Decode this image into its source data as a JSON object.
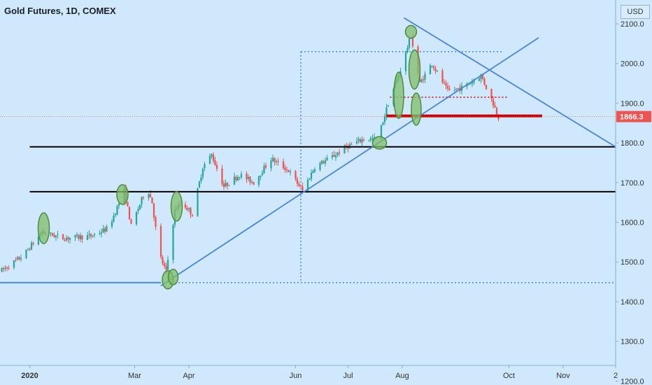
{
  "header": {
    "title": "Gold Futures, 1D, COMEX",
    "currency": "USD"
  },
  "colors": {
    "background": "#cfe8fc",
    "up_candle": "#26a69a",
    "down_candle": "#ef5350",
    "trendline": "#4a86d4",
    "horizontal_line": "#000000",
    "support_line": "#cc0000",
    "highlight_fill": "#7fbf6a",
    "highlight_stroke": "#4f8a3d",
    "price_label_bg": "#ef5350",
    "axis_text": "#333333"
  },
  "chart_data": {
    "type": "candlestick",
    "title": "Gold Futures, 1D, COMEX",
    "y_range": [
      1190,
      2160
    ],
    "y_ticks": [
      "2100.0",
      "2000.0",
      "1900.0",
      "1800.0",
      "1700.0",
      "1600.0",
      "1500.0",
      "1400.0",
      "1300.0",
      "1200.0"
    ],
    "x_range": [
      "2019-12-15",
      "2020-12-01"
    ],
    "x_ticks": [
      {
        "date": "2020-01-01",
        "label": "2020"
      },
      {
        "date": "2020-03-01",
        "label": "Mar"
      },
      {
        "date": "2020-04-01",
        "label": "Apr"
      },
      {
        "date": "2020-06-01",
        "label": "Jun"
      },
      {
        "date": "2020-07-01",
        "label": "Jul"
      },
      {
        "date": "2020-08-01",
        "label": "Aug"
      },
      {
        "date": "2020-10-01",
        "label": "Oct"
      },
      {
        "date": "2020-11-01",
        "label": "Nov"
      },
      {
        "date": "2020-12-01",
        "label": "2"
      }
    ],
    "current_price": "1866.3",
    "price_path": [
      [
        "2019-12-16",
        1478
      ],
      [
        "2019-12-28",
        1515
      ],
      [
        "2020-01-08",
        1575
      ],
      [
        "2020-01-20",
        1560
      ],
      [
        "2020-02-05",
        1565
      ],
      [
        "2020-02-15",
        1585
      ],
      [
        "2020-02-24",
        1680
      ],
      [
        "2020-02-28",
        1590
      ],
      [
        "2020-03-08",
        1690
      ],
      [
        "2020-03-11",
        1650
      ],
      [
        "2020-03-15",
        1520
      ],
      [
        "2020-03-19",
        1475
      ],
      [
        "2020-03-24",
        1630
      ],
      [
        "2020-03-28",
        1650
      ],
      [
        "2020-04-03",
        1620
      ],
      [
        "2020-04-09",
        1740
      ],
      [
        "2020-04-14",
        1770
      ],
      [
        "2020-04-21",
        1690
      ],
      [
        "2020-04-30",
        1720
      ],
      [
        "2020-05-08",
        1700
      ],
      [
        "2020-05-18",
        1760
      ],
      [
        "2020-05-28",
        1730
      ],
      [
        "2020-06-05",
        1680
      ],
      [
        "2020-06-12",
        1740
      ],
      [
        "2020-06-22",
        1765
      ],
      [
        "2020-06-30",
        1790
      ],
      [
        "2020-07-10",
        1810
      ],
      [
        "2020-07-18",
        1810
      ],
      [
        "2020-07-24",
        1900
      ],
      [
        "2020-07-31",
        1985
      ],
      [
        "2020-08-06",
        2070
      ],
      [
        "2020-08-11",
        1950
      ],
      [
        "2020-08-18",
        2000
      ],
      [
        "2020-08-27",
        1930
      ],
      [
        "2020-09-05",
        1940
      ],
      [
        "2020-09-15",
        1970
      ],
      [
        "2020-09-21",
        1910
      ],
      [
        "2020-09-25",
        1866
      ]
    ],
    "horizontal_lines": [
      {
        "y": 1790,
        "x_start": "2020-01-01",
        "x_end": "2020-12-01",
        "style": "solid",
        "color": "#000000"
      },
      {
        "y": 1677,
        "x_start": "2020-01-01",
        "x_end": "2020-12-01",
        "style": "solid",
        "color": "#000000"
      },
      {
        "y": 1868,
        "x_start": "2020-07-23",
        "x_end": "2020-10-20",
        "style": "solid",
        "color": "#cc0000"
      },
      {
        "y": 1915,
        "x_start": "2020-07-25",
        "x_end": "2020-09-30",
        "style": "dotted",
        "color": "#cc0000"
      },
      {
        "y": 1448,
        "x_start": "2019-12-15",
        "x_end": "2020-03-16",
        "style": "solid",
        "color": "#4a86d4"
      }
    ],
    "trend_lines": [
      {
        "from": [
          "2020-03-16",
          1440
        ],
        "to": [
          "2020-10-18",
          2065
        ]
      },
      {
        "from": [
          "2020-08-02",
          2115
        ],
        "to": [
          "2020-12-01",
          1790
        ]
      }
    ],
    "measure_box": {
      "x_start": "2020-06-04",
      "x_end": "2020-11-30",
      "y_top": 2030,
      "y_bottom": 1448
    },
    "highlights": [
      {
        "date": "2020-01-09",
        "price": 1585,
        "rx": 8,
        "ry": 22
      },
      {
        "date": "2020-02-23",
        "price": 1670,
        "rx": 8,
        "ry": 14
      },
      {
        "date": "2020-03-20",
        "price": 1455,
        "rx": 8,
        "ry": 13
      },
      {
        "date": "2020-03-23",
        "price": 1462,
        "rx": 7,
        "ry": 11
      },
      {
        "date": "2020-03-25",
        "price": 1640,
        "rx": 8,
        "ry": 21
      },
      {
        "date": "2020-07-19",
        "price": 1800,
        "rx": 10,
        "ry": 9
      },
      {
        "date": "2020-07-30",
        "price": 1920,
        "rx": 7,
        "ry": 33
      },
      {
        "date": "2020-08-06",
        "price": 2080,
        "rx": 8,
        "ry": 9
      },
      {
        "date": "2020-08-08",
        "price": 1985,
        "rx": 8,
        "ry": 28
      },
      {
        "date": "2020-08-09",
        "price": 1885,
        "rx": 7,
        "ry": 23
      }
    ]
  }
}
